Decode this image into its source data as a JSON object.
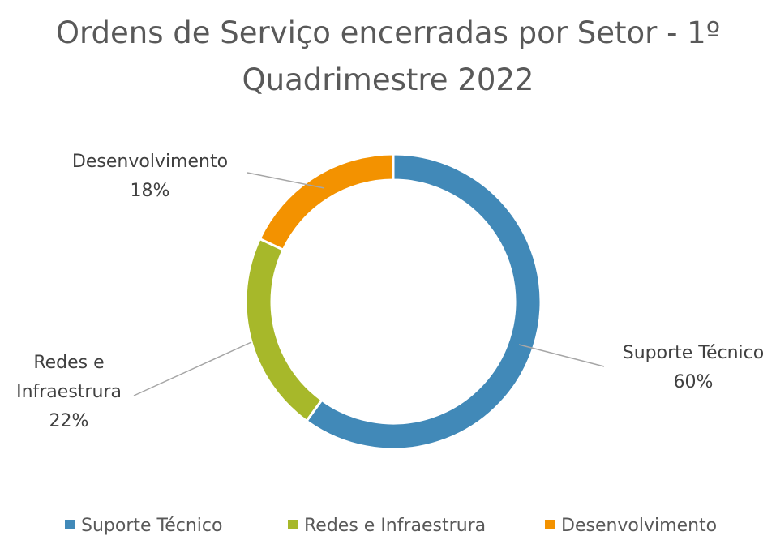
{
  "chart_data": {
    "type": "donut",
    "title": "Ordens de Serviço encerradas por Setor - 1º Quadrimestre 2022",
    "categories": [
      "Suporte Técnico",
      "Redes e Infraestrura",
      "Desenvolvimento"
    ],
    "values": [
      60,
      22,
      18
    ],
    "value_labels": [
      "60%",
      "22%",
      "18%"
    ],
    "colors": [
      "#4189b8",
      "#a7b82a",
      "#f39200"
    ],
    "legend": "bottom"
  }
}
